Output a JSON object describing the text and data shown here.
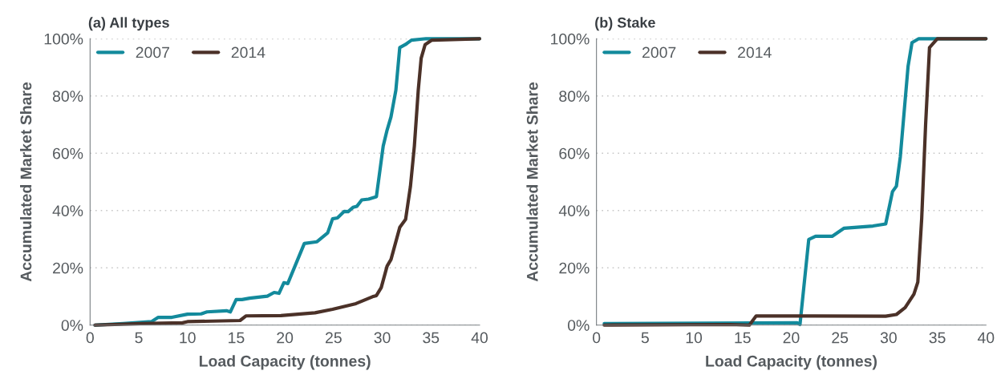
{
  "chart_data": [
    {
      "type": "line",
      "title": "(a) All types",
      "xlabel": "Load Capacity (tonnes)",
      "ylabel": "Accumulated Market Share",
      "xlim": [
        0,
        40
      ],
      "xticks": [
        0,
        5,
        10,
        15,
        20,
        25,
        30,
        35,
        40
      ],
      "ylim": [
        0,
        100
      ],
      "yticks": [
        {
          "value": 0,
          "label": "0%"
        },
        {
          "value": 20,
          "label": "20%"
        },
        {
          "value": 40,
          "label": "40%"
        },
        {
          "value": 60,
          "label": "60%"
        },
        {
          "value": 80,
          "label": "80%"
        },
        {
          "value": 100,
          "label": "100%"
        }
      ],
      "grid": "y",
      "legend": "top left",
      "marker": "none",
      "line_style": "solid",
      "series": [
        {
          "name": "2007",
          "color": "#138a9c",
          "x": [
            0.5,
            3.4,
            6.3,
            7.0,
            8.4,
            10.0,
            11.4,
            12.0,
            14.0,
            14.4,
            15.0,
            15.6,
            16.4,
            18.2,
            18.9,
            19.4,
            19.9,
            20.3,
            22.0,
            23.3,
            24.4,
            24.9,
            25.4,
            26.1,
            26.5,
            27.0,
            27.4,
            27.9,
            28.6,
            29.4,
            30.1,
            30.5,
            30.9,
            31.4,
            31.8,
            32.4,
            33.0,
            34.5,
            40.0
          ],
          "values": [
            0,
            0.5,
            1.2,
            2.7,
            2.7,
            3.8,
            3.9,
            4.6,
            5.0,
            4.6,
            8.9,
            8.9,
            9.4,
            10.1,
            11.4,
            11.1,
            14.8,
            14.5,
            28.5,
            29.1,
            32.2,
            37.1,
            37.4,
            39.7,
            39.6,
            41.1,
            41.5,
            43.7,
            44.0,
            44.8,
            62.5,
            68.1,
            72.7,
            82.0,
            96.9,
            98.0,
            99.5,
            100,
            100
          ]
        },
        {
          "name": "2014",
          "color": "#4b3128",
          "x": [
            0.5,
            5.2,
            9.5,
            10.0,
            15.4,
            16.0,
            19.6,
            23.1,
            24.9,
            27.3,
            29.0,
            29.4,
            29.9,
            30.5,
            30.9,
            31.8,
            32.4,
            32.9,
            33.3,
            33.7,
            34.0,
            34.4,
            35.1,
            40.0
          ],
          "values": [
            0,
            0.5,
            0.8,
            1.2,
            1.6,
            3.2,
            3.3,
            4.3,
            5.5,
            7.5,
            9.9,
            10.3,
            13.1,
            20.6,
            22.9,
            34.1,
            36.9,
            48.5,
            62.5,
            82.0,
            93.2,
            97.9,
            99.5,
            100
          ]
        }
      ]
    },
    {
      "type": "line",
      "title": "(b) Stake",
      "xlabel": "Load Capacity (tonnes)",
      "ylabel": "Accumulated Market Share",
      "xlim": [
        0,
        40
      ],
      "xticks": [
        0,
        5,
        10,
        15,
        20,
        25,
        30,
        35,
        40
      ],
      "ylim": [
        0,
        100
      ],
      "yticks": [
        {
          "value": 0,
          "label": "0%"
        },
        {
          "value": 20,
          "label": "20%"
        },
        {
          "value": 40,
          "label": "40%"
        },
        {
          "value": 60,
          "label": "60%"
        },
        {
          "value": 80,
          "label": "80%"
        },
        {
          "value": 100,
          "label": "100%"
        }
      ],
      "grid": "y",
      "legend": "top left",
      "marker": "none",
      "line_style": "solid",
      "series": [
        {
          "name": "2007",
          "color": "#138a9c",
          "x": [
            0.8,
            20.6,
            20.9,
            21.8,
            22.5,
            24.2,
            25.4,
            26.5,
            28.4,
            29.7,
            30.4,
            30.8,
            31.2,
            31.6,
            32.0,
            32.4,
            33.1,
            40.0
          ],
          "values": [
            0.5,
            0.8,
            0.2,
            29.9,
            31.0,
            31.0,
            33.8,
            34.1,
            34.6,
            35.3,
            46.6,
            48.5,
            58.7,
            74.6,
            90.4,
            98.6,
            100,
            100
          ]
        },
        {
          "name": "2014",
          "color": "#4b3128",
          "x": [
            0.8,
            13.7,
            15.7,
            16.4,
            29.7,
            30.8,
            31.7,
            32.6,
            33.0,
            33.4,
            33.8,
            34.2,
            35.0,
            40.0
          ],
          "values": [
            0,
            0.2,
            0,
            3.2,
            3.1,
            3.7,
            6.1,
            10.8,
            15.0,
            37.3,
            70.0,
            96.9,
            100,
            100
          ]
        }
      ]
    }
  ]
}
